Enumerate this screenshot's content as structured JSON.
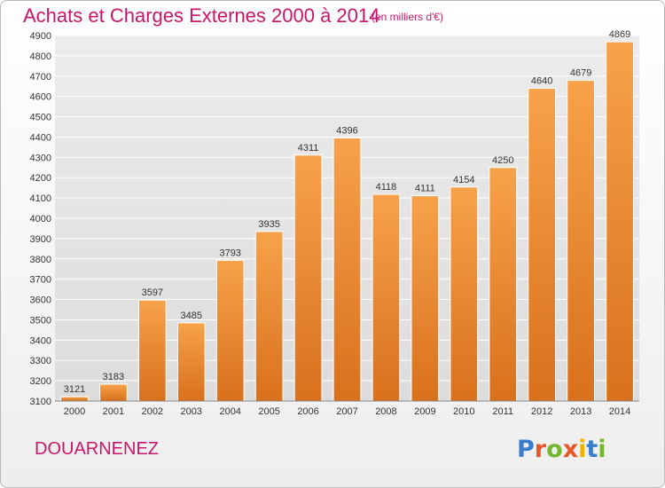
{
  "header": {
    "title": "Achats et Charges Externes 2000 à 2014",
    "subtitle": "(en milliers d'€)"
  },
  "footer": {
    "commune": "DOUARNENEZ",
    "logo_text": "Proxiti",
    "logo_colors": [
      "#3a7ccc",
      "#e8562a",
      "#74b62e",
      "#e8562a",
      "#f0b400",
      "#3a7ccc",
      "#74b62e"
    ]
  },
  "colors": {
    "bar_light": "#f7a24a",
    "bar_dark": "#d9701c",
    "text": "#333333",
    "accent": "#c8176a",
    "grid": "#ffffff",
    "plot_bg": "#e4e4e4"
  },
  "chart_data": {
    "type": "bar",
    "title": "Achats et Charges Externes 2000 à 2014",
    "subtitle": "(en milliers d'€)",
    "xlabel": "",
    "ylabel": "",
    "categories": [
      "2000",
      "2001",
      "2002",
      "2003",
      "2004",
      "2005",
      "2006",
      "2007",
      "2008",
      "2009",
      "2010",
      "2011",
      "2012",
      "2013",
      "2014"
    ],
    "values": [
      3121,
      3183,
      3597,
      3485,
      3793,
      3935,
      4311,
      4396,
      4118,
      4111,
      4154,
      4250,
      4640,
      4679,
      4869
    ],
    "ylim": [
      3100,
      4900
    ],
    "yticks": [
      3100,
      3200,
      3300,
      3400,
      3500,
      3600,
      3700,
      3800,
      3900,
      4000,
      4100,
      4200,
      4300,
      4400,
      4500,
      4600,
      4700,
      4800,
      4900
    ],
    "grid": true,
    "data_labels": true
  }
}
